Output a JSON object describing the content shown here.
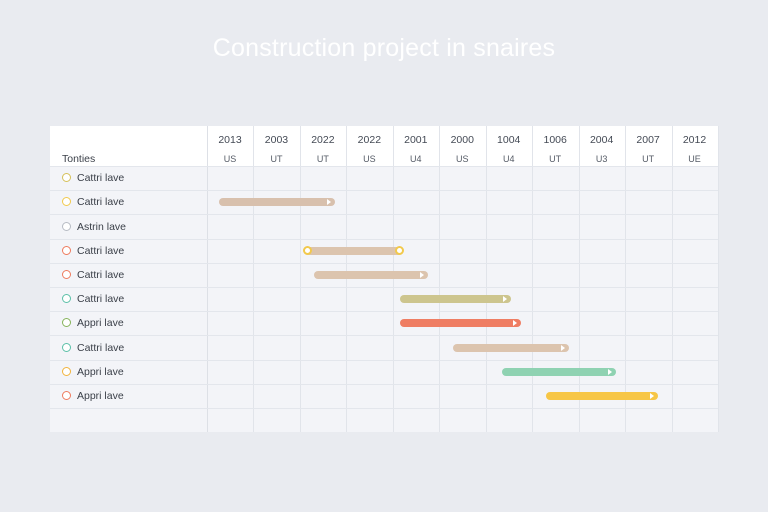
{
  "title": "Construction project in snaires",
  "chart_data": {
    "type": "gantt",
    "label_header": "Tonties",
    "columns": [
      {
        "year": "2013",
        "unit": "US"
      },
      {
        "year": "2003",
        "unit": "UT"
      },
      {
        "year": "2022",
        "unit": "UT"
      },
      {
        "year": "2022",
        "unit": "US"
      },
      {
        "year": "2001",
        "unit": "U4"
      },
      {
        "year": "2000",
        "unit": "US"
      },
      {
        "year": "1004",
        "unit": "U4"
      },
      {
        "year": "1006",
        "unit": "UT"
      },
      {
        "year": "2004",
        "unit": "U3"
      },
      {
        "year": "2007",
        "unit": "UT"
      },
      {
        "year": "2012",
        "unit": "UE"
      }
    ],
    "tasks": [
      {
        "label": "Cattri lave",
        "color": "#d6c15a",
        "start": null,
        "end": null
      },
      {
        "label": "Cattri lave",
        "color": "#f2c94c",
        "start": 0.25,
        "end": 2.75,
        "bar_color": "#d8c0ad"
      },
      {
        "label": "Astrin lave",
        "color": "#b8bcc4",
        "start": null,
        "end": null
      },
      {
        "label": "Cattri lave",
        "color": "#ee7b5e",
        "start": 2.1,
        "end": 4.2,
        "bar_color": "#dcc4ae"
      },
      {
        "label": "Cattri lave",
        "color": "#ee7b5e",
        "start": 2.3,
        "end": 4.75,
        "bar_color": "#dcc4ae"
      },
      {
        "label": "Cattri lave",
        "color": "#5cc0a8",
        "start": 4.15,
        "end": 6.55,
        "bar_color": "#cdc58e"
      },
      {
        "label": "Appri lave",
        "color": "#86b35a",
        "start": 4.15,
        "end": 6.75,
        "bar_color": "#ef7d63"
      },
      {
        "label": "Cattri lave",
        "color": "#5cc0a8",
        "start": 5.3,
        "end": 7.8,
        "bar_color": "#dcc4ae"
      },
      {
        "label": "Appri lave",
        "color": "#f2b33c",
        "start": 6.35,
        "end": 8.8,
        "bar_color": "#8fd2b2"
      },
      {
        "label": "Appri lave",
        "color": "#ee7b5e",
        "start": 7.3,
        "end": 9.7,
        "bar_color": "#f7c646"
      }
    ]
  }
}
